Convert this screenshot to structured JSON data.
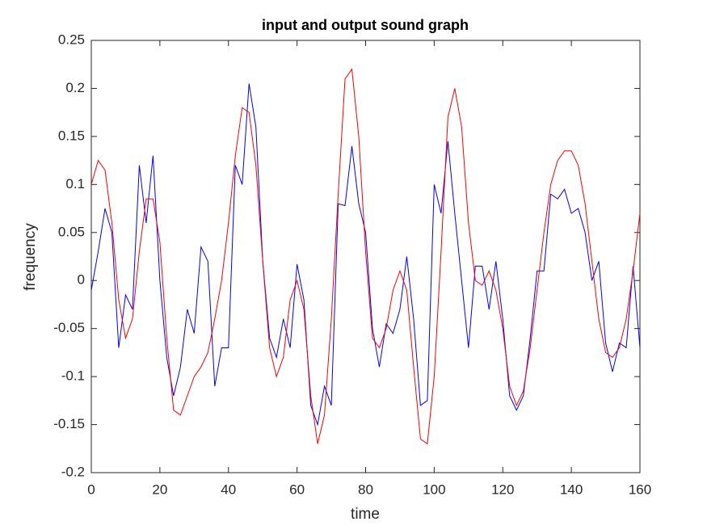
{
  "chart_data": {
    "type": "line",
    "title": "input and output sound graph",
    "x_label": "time",
    "y_label": "frequency",
    "x": [
      0,
      2,
      4,
      6,
      8,
      10,
      12,
      14,
      16,
      18,
      20,
      22,
      24,
      26,
      28,
      30,
      32,
      34,
      36,
      38,
      40,
      42,
      44,
      46,
      48,
      50,
      52,
      54,
      56,
      58,
      60,
      62,
      64,
      66,
      68,
      70,
      72,
      74,
      76,
      78,
      80,
      82,
      84,
      86,
      88,
      90,
      92,
      94,
      96,
      98,
      100,
      102,
      104,
      106,
      108,
      110,
      112,
      114,
      116,
      118,
      120,
      122,
      124,
      126,
      128,
      130,
      132,
      134,
      136,
      138,
      140,
      142,
      144,
      146,
      148,
      150,
      152,
      154,
      156,
      158,
      160
    ],
    "series": [
      {
        "color": "#0000ff",
        "values": [
          -0.01,
          0.03,
          0.075,
          0.05,
          -0.07,
          -0.015,
          -0.03,
          0.12,
          0.06,
          0.13,
          0.0,
          -0.08,
          -0.12,
          -0.09,
          -0.03,
          -0.055,
          0.035,
          0.02,
          -0.11,
          -0.07,
          -0.07,
          0.12,
          0.1,
          0.205,
          0.16,
          0.02,
          -0.06,
          -0.08,
          -0.04,
          -0.07,
          0.017,
          -0.02,
          -0.13,
          -0.15,
          -0.11,
          -0.13,
          0.08,
          0.078,
          0.14,
          0.08,
          0.05,
          -0.05,
          -0.09,
          -0.045,
          -0.055,
          -0.03,
          0.025,
          -0.04,
          -0.13,
          -0.125,
          0.1,
          0.07,
          0.145,
          0.07,
          0.0,
          -0.07,
          0.015,
          0.015,
          -0.03,
          0.02,
          -0.04,
          -0.12,
          -0.135,
          -0.12,
          -0.06,
          0.01,
          0.01,
          0.09,
          0.085,
          0.095,
          0.07,
          0.075,
          0.05,
          0.0,
          0.02,
          -0.065,
          -0.095,
          -0.065,
          -0.07,
          0.015,
          -0.07
        ]
      },
      {
        "color": "#ff0000",
        "values": [
          0.1,
          0.125,
          0.115,
          0.06,
          -0.02,
          -0.06,
          -0.04,
          0.03,
          0.085,
          0.085,
          0.04,
          -0.06,
          -0.135,
          -0.14,
          -0.12,
          -0.1,
          -0.09,
          -0.075,
          -0.04,
          0.0,
          0.06,
          0.13,
          0.18,
          0.175,
          0.12,
          0.02,
          -0.07,
          -0.1,
          -0.08,
          -0.02,
          0.0,
          -0.03,
          -0.12,
          -0.17,
          -0.14,
          -0.04,
          0.09,
          0.21,
          0.22,
          0.15,
          0.03,
          -0.06,
          -0.07,
          -0.05,
          -0.01,
          0.01,
          -0.01,
          -0.09,
          -0.165,
          -0.17,
          -0.1,
          0.03,
          0.17,
          0.2,
          0.16,
          0.06,
          0.0,
          -0.005,
          0.01,
          -0.01,
          -0.05,
          -0.11,
          -0.13,
          -0.115,
          -0.07,
          -0.01,
          0.05,
          0.1,
          0.125,
          0.135,
          0.135,
          0.12,
          0.08,
          0.02,
          -0.04,
          -0.075,
          -0.08,
          -0.07,
          -0.04,
          0.01,
          0.07
        ]
      }
    ],
    "xlim": [
      0,
      160
    ],
    "xticks": [
      0,
      20,
      40,
      60,
      80,
      100,
      120,
      140,
      160
    ],
    "ylim": [
      -0.2,
      0.25
    ],
    "yticks": [
      -0.2,
      -0.15,
      -0.1,
      -0.05,
      0,
      0.05,
      0.1,
      0.15,
      0.2,
      0.25
    ],
    "grid": false
  }
}
